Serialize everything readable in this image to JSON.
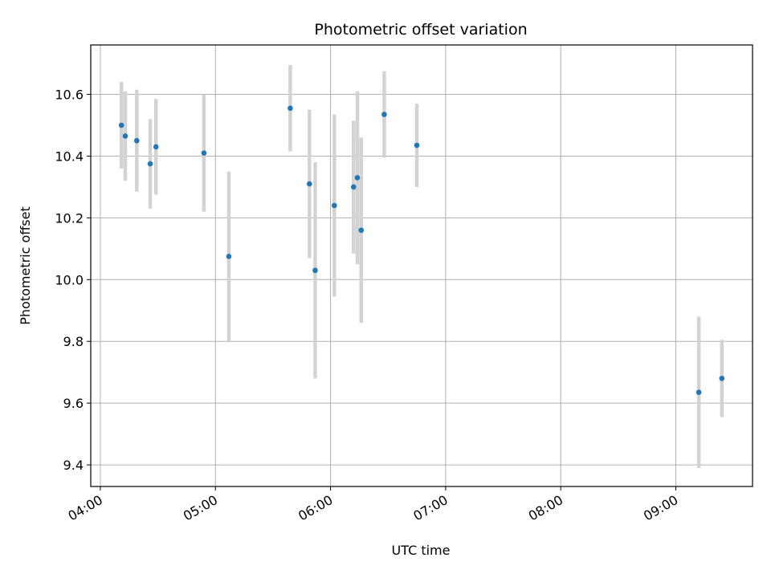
{
  "chart_data": {
    "type": "scatter",
    "title": "Photometric offset variation",
    "xlabel": "UTC time",
    "ylabel": "Photometric offset",
    "x_ticks": [
      "04:00",
      "05:00",
      "06:00",
      "07:00",
      "08:00",
      "09:00"
    ],
    "y_ticks": [
      "9.4",
      "9.6",
      "9.8",
      "10.0",
      "10.2",
      "10.4",
      "10.6"
    ],
    "xlim": [
      "03:55",
      "09:40"
    ],
    "ylim": [
      9.33,
      10.76
    ],
    "grid": true,
    "colors": {
      "point": "#1f77b4",
      "errorbar": "#d3d3d3",
      "grid": "#b0b0b0"
    },
    "points": [
      {
        "time": "04:11",
        "y": 10.5,
        "err": 0.14
      },
      {
        "time": "04:13",
        "y": 10.465,
        "err": 0.145
      },
      {
        "time": "04:19",
        "y": 10.45,
        "err": 0.165
      },
      {
        "time": "04:26",
        "y": 10.375,
        "err": 0.145
      },
      {
        "time": "04:29",
        "y": 10.43,
        "err": 0.155
      },
      {
        "time": "04:54",
        "y": 10.41,
        "err": 0.19
      },
      {
        "time": "05:07",
        "y": 10.075,
        "err": 0.275
      },
      {
        "time": "05:39",
        "y": 10.555,
        "err": 0.14
      },
      {
        "time": "05:49",
        "y": 10.31,
        "err": 0.24
      },
      {
        "time": "05:52",
        "y": 10.03,
        "err": 0.35
      },
      {
        "time": "06:02",
        "y": 10.24,
        "err": 0.295
      },
      {
        "time": "06:12",
        "y": 10.3,
        "err": 0.215
      },
      {
        "time": "06:14",
        "y": 10.33,
        "err": 0.28
      },
      {
        "time": "06:16",
        "y": 10.16,
        "err": 0.3
      },
      {
        "time": "06:28",
        "y": 10.535,
        "err": 0.14
      },
      {
        "time": "06:45",
        "y": 10.435,
        "err": 0.135
      },
      {
        "time": "09:12",
        "y": 9.635,
        "err": 0.245
      },
      {
        "time": "09:24",
        "y": 9.68,
        "err": 0.125
      }
    ]
  }
}
